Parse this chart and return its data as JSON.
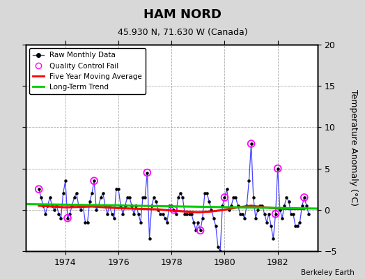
{
  "title": "HAM NORD",
  "subtitle": "45.930 N, 71.630 W (Canada)",
  "ylabel": "Temperature Anomaly (°C)",
  "credit": "Berkeley Earth",
  "xlim": [
    1972.5,
    1983.5
  ],
  "ylim": [
    -5,
    20
  ],
  "yticks": [
    -5,
    0,
    5,
    10,
    15,
    20
  ],
  "xticks": [
    1974,
    1976,
    1978,
    1980,
    1982
  ],
  "bg_color": "#d8d8d8",
  "plot_bg_color": "#ffffff",
  "raw_color": "#4444ff",
  "moving_avg_color": "#ff0000",
  "trend_color": "#00cc00",
  "qc_color": "#ff00ff",
  "raw_months": [
    1973.0,
    1973.083,
    1973.167,
    1973.25,
    1973.333,
    1973.417,
    1973.5,
    1973.583,
    1973.667,
    1973.75,
    1973.833,
    1973.917,
    1974.0,
    1974.083,
    1974.167,
    1974.25,
    1974.333,
    1974.417,
    1974.5,
    1974.583,
    1974.667,
    1974.75,
    1974.833,
    1974.917,
    1975.0,
    1975.083,
    1975.167,
    1975.25,
    1975.333,
    1975.417,
    1975.5,
    1975.583,
    1975.667,
    1975.75,
    1975.833,
    1975.917,
    1976.0,
    1976.083,
    1976.167,
    1976.25,
    1976.333,
    1976.417,
    1976.5,
    1976.583,
    1976.667,
    1976.75,
    1976.833,
    1976.917,
    1977.0,
    1977.083,
    1977.167,
    1977.25,
    1977.333,
    1977.417,
    1977.5,
    1977.583,
    1977.667,
    1977.75,
    1977.833,
    1977.917,
    1978.0,
    1978.083,
    1978.167,
    1978.25,
    1978.333,
    1978.417,
    1978.5,
    1978.583,
    1978.667,
    1978.75,
    1978.833,
    1978.917,
    1979.0,
    1979.083,
    1979.167,
    1979.25,
    1979.333,
    1979.417,
    1979.5,
    1979.583,
    1979.667,
    1979.75,
    1979.833,
    1979.917,
    1980.0,
    1980.083,
    1980.167,
    1980.25,
    1980.333,
    1980.417,
    1980.5,
    1980.583,
    1980.667,
    1980.75,
    1980.833,
    1980.917,
    1981.0,
    1981.083,
    1981.167,
    1981.25,
    1981.333,
    1981.417,
    1981.5,
    1981.583,
    1981.667,
    1981.75,
    1981.833,
    1981.917,
    1982.0,
    1982.083,
    1982.167,
    1982.25,
    1982.333,
    1982.417,
    1982.5,
    1982.583,
    1982.667,
    1982.75,
    1982.833,
    1982.917,
    1983.0,
    1983.083,
    1983.167
  ],
  "raw_values": [
    2.5,
    1.5,
    0.5,
    -0.5,
    0.5,
    1.5,
    0.5,
    0.0,
    0.5,
    -0.5,
    -1.0,
    2.0,
    3.5,
    -1.0,
    -0.5,
    0.5,
    1.5,
    2.0,
    0.5,
    0.0,
    0.5,
    -1.5,
    -1.5,
    1.0,
    2.0,
    3.5,
    0.0,
    0.5,
    1.5,
    2.0,
    0.5,
    -0.5,
    0.5,
    -0.5,
    -1.0,
    2.5,
    2.5,
    0.5,
    -0.5,
    0.5,
    1.5,
    1.5,
    0.5,
    -0.5,
    0.5,
    -0.5,
    -1.5,
    1.5,
    1.5,
    4.5,
    -3.5,
    0.5,
    1.5,
    1.0,
    0.0,
    -0.5,
    -0.5,
    -1.0,
    -1.5,
    0.5,
    0.5,
    0.0,
    -0.5,
    1.5,
    2.0,
    1.5,
    -0.5,
    -0.5,
    -0.5,
    -0.5,
    -1.5,
    -2.5,
    -1.5,
    -2.5,
    -1.0,
    2.0,
    2.0,
    1.0,
    0.0,
    -1.0,
    -2.0,
    -4.5,
    -5.0,
    0.5,
    1.5,
    2.5,
    0.0,
    0.5,
    1.5,
    1.5,
    0.5,
    -0.5,
    -0.5,
    -1.0,
    0.5,
    3.5,
    8.0,
    1.5,
    -1.0,
    0.0,
    0.5,
    0.5,
    -0.5,
    -1.5,
    -0.5,
    -2.0,
    -3.5,
    -0.5,
    5.0,
    0.0,
    -1.0,
    0.5,
    1.5,
    1.0,
    -0.5,
    -0.5,
    -2.0,
    -2.0,
    -1.5,
    0.5,
    1.5,
    0.5,
    -0.5
  ],
  "qc_fail_indices": [
    0,
    13,
    25,
    49,
    61,
    73,
    84,
    96,
    107,
    108,
    120
  ],
  "moving_avg_x": [
    1973.0,
    1973.5,
    1974.0,
    1974.5,
    1975.0,
    1975.5,
    1976.0,
    1976.5,
    1977.0,
    1977.5,
    1978.0,
    1978.5,
    1979.0,
    1979.5,
    1980.0,
    1980.5,
    1981.0,
    1981.5,
    1982.0,
    1982.5,
    1983.0
  ],
  "moving_avg_y": [
    0.5,
    0.4,
    0.3,
    0.35,
    0.4,
    0.3,
    0.2,
    0.15,
    0.1,
    0.05,
    -0.1,
    -0.2,
    -0.3,
    -0.2,
    0.0,
    0.3,
    0.5,
    0.3,
    0.15,
    0.1,
    0.1
  ],
  "trend_x": [
    1972.5,
    1983.5
  ],
  "trend_y": [
    0.7,
    0.15
  ],
  "figsize": [
    5.24,
    4.0
  ],
  "dpi": 100
}
